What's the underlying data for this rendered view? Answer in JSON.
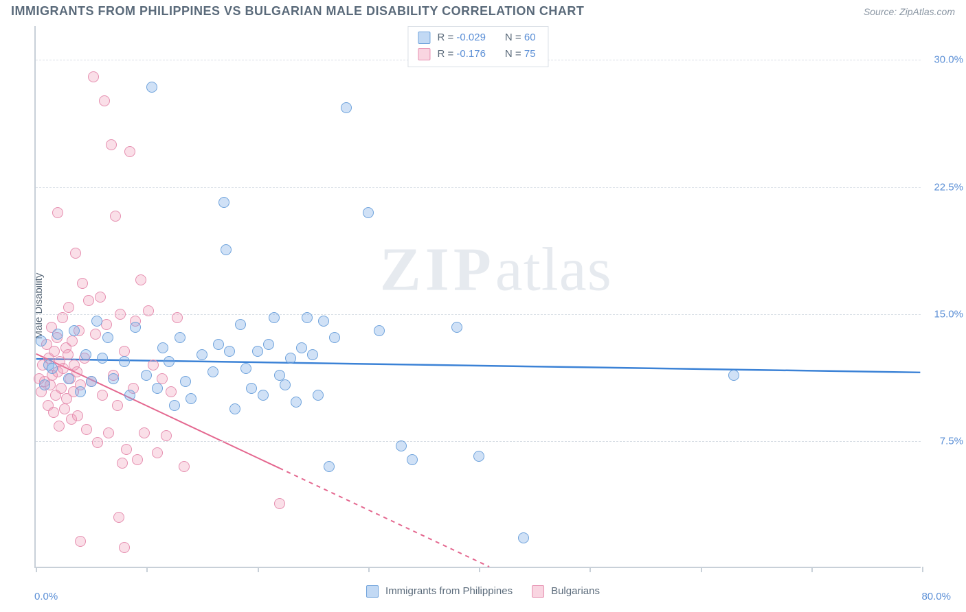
{
  "header": {
    "title": "IMMIGRANTS FROM PHILIPPINES VS BULGARIAN MALE DISABILITY CORRELATION CHART",
    "source_prefix": "Source: ",
    "source_name": "ZipAtlas.com"
  },
  "watermark": {
    "zip": "ZIP",
    "atlas": "atlas"
  },
  "chart": {
    "type": "scatter",
    "y_axis_title": "Male Disability",
    "x_range": [
      0,
      80
    ],
    "y_range": [
      0,
      32
    ],
    "x_min_label": "0.0%",
    "x_max_label": "80.0%",
    "y_ticks": [
      {
        "value": 7.5,
        "label": "7.5%"
      },
      {
        "value": 15.0,
        "label": "15.0%"
      },
      {
        "value": 22.5,
        "label": "22.5%"
      },
      {
        "value": 30.0,
        "label": "30.0%"
      }
    ],
    "x_tick_values": [
      0,
      10,
      20,
      30,
      40,
      50,
      60,
      70,
      80
    ],
    "grid_color": "#d8dee5",
    "axis_color": "#c8d0d8",
    "background_color": "#ffffff",
    "marker_radius": 8,
    "series": {
      "blue": {
        "label": "Immigrants from Philippines",
        "r": "-0.029",
        "n": "60",
        "fill": "rgba(120,170,230,0.35)",
        "stroke": "#6fa3dc",
        "trend": {
          "x1": 0,
          "y1": 12.3,
          "x2": 80,
          "y2": 11.5,
          "color": "#3b82d6",
          "width": 2.5,
          "dash_after_x": null
        },
        "points": [
          [
            0.5,
            13.4
          ],
          [
            1.2,
            12.0
          ],
          [
            2.0,
            13.8
          ],
          [
            3.0,
            11.2
          ],
          [
            3.5,
            14.0
          ],
          [
            4.0,
            10.4
          ],
          [
            4.5,
            12.6
          ],
          [
            5.0,
            11.0
          ],
          [
            5.5,
            14.6
          ],
          [
            6.0,
            12.4
          ],
          [
            6.5,
            13.6
          ],
          [
            7.0,
            11.2
          ],
          [
            8.0,
            12.2
          ],
          [
            8.5,
            10.2
          ],
          [
            9.0,
            14.2
          ],
          [
            10.0,
            11.4
          ],
          [
            10.5,
            28.4
          ],
          [
            11.0,
            10.6
          ],
          [
            11.5,
            13.0
          ],
          [
            12.0,
            12.2
          ],
          [
            12.5,
            9.6
          ],
          [
            13.0,
            13.6
          ],
          [
            13.5,
            11.0
          ],
          [
            14.0,
            10.0
          ],
          [
            15.0,
            12.6
          ],
          [
            16.0,
            11.6
          ],
          [
            16.5,
            13.2
          ],
          [
            17.0,
            21.6
          ],
          [
            17.2,
            18.8
          ],
          [
            17.5,
            12.8
          ],
          [
            18.0,
            9.4
          ],
          [
            18.5,
            14.4
          ],
          [
            19.0,
            11.8
          ],
          [
            19.5,
            10.6
          ],
          [
            20.0,
            12.8
          ],
          [
            20.5,
            10.2
          ],
          [
            21.0,
            13.2
          ],
          [
            21.5,
            14.8
          ],
          [
            22.0,
            11.4
          ],
          [
            22.5,
            10.8
          ],
          [
            23.0,
            12.4
          ],
          [
            23.5,
            9.8
          ],
          [
            24.0,
            13.0
          ],
          [
            24.5,
            14.8
          ],
          [
            25.0,
            12.6
          ],
          [
            25.5,
            10.2
          ],
          [
            26.0,
            14.6
          ],
          [
            26.5,
            6.0
          ],
          [
            27.0,
            13.6
          ],
          [
            28.0,
            27.2
          ],
          [
            30.0,
            21.0
          ],
          [
            31.0,
            14.0
          ],
          [
            33.0,
            7.2
          ],
          [
            34.0,
            6.4
          ],
          [
            38.0,
            14.2
          ],
          [
            40.0,
            6.6
          ],
          [
            44.0,
            1.8
          ],
          [
            63.0,
            11.4
          ],
          [
            0.8,
            10.8
          ],
          [
            1.5,
            11.8
          ]
        ]
      },
      "pink": {
        "label": "Bulgarians",
        "r": "-0.176",
        "n": "75",
        "fill": "rgba(240,150,180,0.30)",
        "stroke": "#e68fb0",
        "trend": {
          "x1": 0,
          "y1": 12.6,
          "x2": 41,
          "y2": 0,
          "color": "#e4678f",
          "width": 2,
          "dash_after_x": 22
        },
        "points": [
          [
            0.3,
            11.2
          ],
          [
            0.5,
            10.4
          ],
          [
            0.6,
            12.0
          ],
          [
            0.8,
            11.0
          ],
          [
            1.0,
            13.2
          ],
          [
            1.1,
            9.6
          ],
          [
            1.2,
            12.4
          ],
          [
            1.3,
            10.8
          ],
          [
            1.4,
            14.2
          ],
          [
            1.5,
            11.4
          ],
          [
            1.6,
            9.2
          ],
          [
            1.7,
            12.8
          ],
          [
            1.8,
            10.2
          ],
          [
            1.9,
            13.6
          ],
          [
            2.0,
            11.6
          ],
          [
            2.1,
            8.4
          ],
          [
            2.2,
            12.2
          ],
          [
            2.3,
            10.6
          ],
          [
            2.4,
            14.8
          ],
          [
            2.5,
            11.8
          ],
          [
            2.6,
            9.4
          ],
          [
            2.7,
            13.0
          ],
          [
            2.8,
            10.0
          ],
          [
            2.9,
            12.6
          ],
          [
            3.0,
            15.4
          ],
          [
            3.1,
            11.2
          ],
          [
            3.2,
            8.8
          ],
          [
            3.3,
            13.4
          ],
          [
            3.4,
            10.4
          ],
          [
            3.5,
            12.0
          ],
          [
            3.6,
            18.6
          ],
          [
            3.7,
            11.6
          ],
          [
            3.8,
            9.0
          ],
          [
            3.9,
            14.0
          ],
          [
            4.0,
            10.8
          ],
          [
            4.2,
            16.8
          ],
          [
            4.4,
            12.4
          ],
          [
            4.6,
            8.2
          ],
          [
            4.8,
            15.8
          ],
          [
            5.0,
            11.0
          ],
          [
            5.2,
            29.0
          ],
          [
            5.4,
            13.8
          ],
          [
            5.6,
            7.4
          ],
          [
            5.8,
            16.0
          ],
          [
            6.0,
            10.2
          ],
          [
            6.2,
            27.6
          ],
          [
            6.4,
            14.4
          ],
          [
            6.6,
            8.0
          ],
          [
            6.8,
            25.0
          ],
          [
            7.0,
            11.4
          ],
          [
            7.2,
            20.8
          ],
          [
            7.4,
            9.6
          ],
          [
            7.6,
            15.0
          ],
          [
            7.8,
            6.2
          ],
          [
            8.0,
            12.8
          ],
          [
            8.2,
            7.0
          ],
          [
            8.5,
            24.6
          ],
          [
            8.8,
            10.6
          ],
          [
            9.0,
            14.6
          ],
          [
            9.2,
            6.4
          ],
          [
            9.5,
            17.0
          ],
          [
            9.8,
            8.0
          ],
          [
            10.2,
            15.2
          ],
          [
            10.6,
            12.0
          ],
          [
            11.0,
            6.8
          ],
          [
            11.4,
            11.2
          ],
          [
            11.8,
            7.8
          ],
          [
            12.2,
            10.4
          ],
          [
            12.8,
            14.8
          ],
          [
            13.4,
            6.0
          ],
          [
            2.0,
            21.0
          ],
          [
            4.0,
            1.6
          ],
          [
            7.5,
            3.0
          ],
          [
            8.0,
            1.2
          ],
          [
            22.0,
            3.8
          ]
        ]
      }
    },
    "legend_top": {
      "r_label": "R =",
      "n_label": "N ="
    }
  }
}
